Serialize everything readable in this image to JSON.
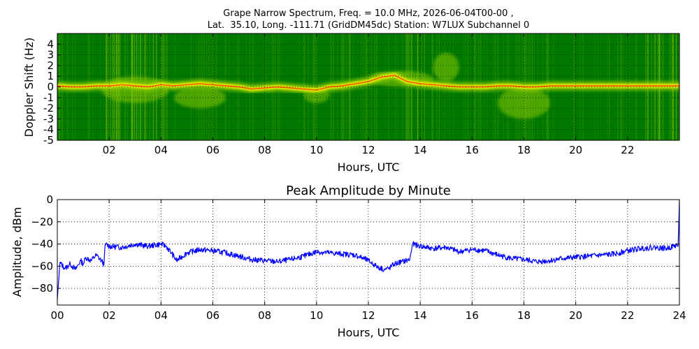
{
  "chart_data": [
    {
      "type": "heatmap",
      "title_lines": [
        "Grape Narrow Spectrum, Freq. = 10.0 MHz, 2026-06-04T00-00 ,",
        "Lat.  35.10, Long. -111.71 (GridDM45dc) Station: W7LUX Subchannel 0"
      ],
      "xlabel": "Hours, UTC",
      "ylabel": "Doppler Shift (Hz)",
      "xlim": [
        0,
        24
      ],
      "ylim": [
        -5,
        5
      ],
      "xticks": [
        2,
        4,
        6,
        8,
        10,
        12,
        14,
        16,
        18,
        20,
        22
      ],
      "xtick_labels": [
        "02",
        "04",
        "06",
        "08",
        "10",
        "12",
        "14",
        "16",
        "18",
        "20",
        "22"
      ],
      "yticks": [
        -5,
        -4,
        -3,
        -2,
        -1,
        0,
        1,
        2,
        3,
        4
      ],
      "ytick_labels": [
        "-5",
        "-4",
        "-3",
        "-2",
        "-1",
        "0",
        "1",
        "2",
        "3",
        "4"
      ],
      "grid": true,
      "colors": {
        "background": "#007800",
        "mid": "#88c800",
        "strong": "#f0f000",
        "peak": "#ff3000"
      },
      "trace": {
        "x": [
          0,
          0.5,
          1,
          1.5,
          2,
          2.5,
          3,
          3.5,
          4,
          4.5,
          5,
          5.5,
          6,
          6.5,
          7,
          7.5,
          8,
          8.5,
          9,
          9.5,
          10,
          10.5,
          11,
          11.5,
          12,
          12.5,
          13,
          13.5,
          14,
          14.5,
          15,
          15.5,
          16,
          16.5,
          17,
          17.5,
          18,
          18.5,
          19,
          19.5,
          20,
          20.5,
          21,
          21.5,
          22,
          22.5,
          23,
          23.5,
          24
        ],
        "doppler": [
          0.1,
          0.0,
          0.0,
          0.1,
          0.1,
          0.2,
          0.1,
          0.0,
          0.2,
          0.1,
          0.2,
          0.3,
          0.2,
          0.1,
          0.0,
          -0.2,
          -0.1,
          0.0,
          -0.1,
          -0.2,
          -0.3,
          0.0,
          0.1,
          0.3,
          0.5,
          0.9,
          1.1,
          0.5,
          0.3,
          0.2,
          0.1,
          0.0,
          0.0,
          0.0,
          0.1,
          0.1,
          0.0,
          0.0,
          0.1,
          0.1,
          0.1,
          0.1,
          0.1,
          0.1,
          0.1,
          0.1,
          0.1,
          0.1,
          0.1
        ]
      },
      "features": [
        {
          "name": "spread-02-04",
          "x": [
            1.7,
            4.3
          ],
          "y": [
            -1.5,
            1.0
          ]
        },
        {
          "name": "dip-05-06",
          "x": [
            4.5,
            6.5
          ],
          "y": [
            -2.0,
            0.0
          ]
        },
        {
          "name": "dip-10",
          "x": [
            9.5,
            10.5
          ],
          "y": [
            -1.5,
            0.0
          ]
        },
        {
          "name": "rise-12-14",
          "x": [
            12.0,
            14.5
          ],
          "y": [
            0.0,
            1.5
          ]
        },
        {
          "name": "hump-15",
          "x": [
            14.5,
            15.5
          ],
          "y": [
            0.5,
            3.2
          ]
        },
        {
          "name": "tail-18",
          "x": [
            17.0,
            19.0
          ],
          "y": [
            -3.0,
            0.0
          ]
        }
      ]
    },
    {
      "type": "line",
      "title": "Peak Amplitude by Minute",
      "xlabel": "Hours, UTC",
      "ylabel": "Amplitude, dBm",
      "xlim": [
        0,
        24
      ],
      "ylim": [
        -95,
        0
      ],
      "xticks": [
        0,
        2,
        4,
        6,
        8,
        10,
        12,
        14,
        16,
        18,
        20,
        22,
        24
      ],
      "xtick_labels": [
        "00",
        "02",
        "04",
        "06",
        "08",
        "10",
        "12",
        "14",
        "16",
        "18",
        "20",
        "22",
        "24"
      ],
      "yticks": [
        0,
        -20,
        -40,
        -60,
        -80
      ],
      "ytick_labels": [
        "0",
        "−20",
        "−40",
        "−60",
        "−80"
      ],
      "grid": true,
      "color": "#0000ff",
      "series": [
        {
          "x": [
            0.0,
            0.1,
            0.3,
            0.5,
            0.7,
            0.9,
            1.0,
            1.1,
            1.3,
            1.5,
            1.7,
            1.8,
            1.85,
            2.0,
            2.5,
            3.0,
            3.5,
            4.0,
            4.2,
            4.4,
            4.6,
            5.0,
            5.5,
            6.0,
            6.5,
            7.0,
            7.5,
            8.0,
            8.5,
            9.0,
            9.5,
            10.0,
            10.5,
            11.0,
            11.5,
            12.0,
            12.3,
            12.6,
            12.8,
            13.0,
            13.3,
            13.6,
            13.7,
            14.0,
            14.5,
            15.0,
            15.5,
            16.0,
            16.5,
            17.0,
            17.5,
            18.0,
            18.5,
            19.0,
            19.5,
            20.0,
            20.5,
            21.0,
            21.5,
            22.0,
            22.5,
            23.0,
            23.5,
            23.9,
            23.95,
            24.0
          ],
          "y": [
            -90,
            -57,
            -62,
            -58,
            -63,
            -55,
            -58,
            -52,
            -55,
            -50,
            -55,
            -58,
            -40,
            -42,
            -43,
            -40,
            -42,
            -40,
            -42,
            -48,
            -55,
            -48,
            -45,
            -46,
            -48,
            -51,
            -54,
            -55,
            -56,
            -54,
            -51,
            -47,
            -48,
            -49,
            -50,
            -55,
            -60,
            -63,
            -62,
            -58,
            -56,
            -54,
            -40,
            -42,
            -44,
            -43,
            -47,
            -45,
            -46,
            -50,
            -53,
            -54,
            -56,
            -55,
            -53,
            -52,
            -51,
            -50,
            -49,
            -46,
            -44,
            -43,
            -44,
            -41,
            -42,
            0
          ]
        }
      ]
    }
  ]
}
